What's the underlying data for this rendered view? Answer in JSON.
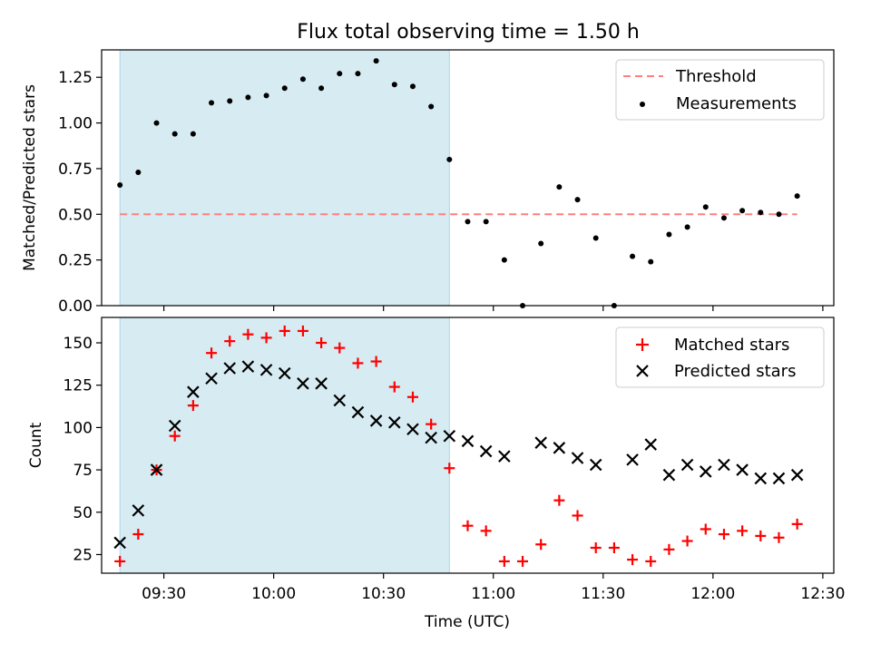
{
  "title": "Flux total observing time = 1.50 h",
  "colors": {
    "shade": "#add8e6",
    "threshold": "#ff7f7f",
    "measurement": "#000000",
    "matched": "#ff0000",
    "predicted": "#000000"
  },
  "chart_data": [
    {
      "type": "scatter",
      "ylabel": "Matched/Predicted stars",
      "ylim": [
        0,
        1.4
      ],
      "yticks": [
        0.0,
        0.25,
        0.5,
        0.75,
        1.0,
        1.25
      ],
      "ytick_labels": [
        "0.00",
        "0.25",
        "0.50",
        "0.75",
        "1.00",
        "1.25"
      ],
      "xlim": [
        "09:13",
        "12:33"
      ],
      "xticks": [
        "09:30",
        "10:00",
        "10:30",
        "11:00",
        "11:30",
        "12:00",
        "12:30"
      ],
      "shaded_span": [
        "09:18",
        "10:48"
      ],
      "grid": false,
      "legend_position": "top-right",
      "legend": [
        "Threshold",
        "Measurements"
      ],
      "threshold": {
        "name": "Threshold",
        "y": 0.5,
        "x_range": [
          "09:18",
          "12:23"
        ],
        "style": "dashed"
      },
      "series": [
        {
          "name": "Measurements",
          "marker": "dot",
          "x": [
            "09:18",
            "09:23",
            "09:28",
            "09:33",
            "09:38",
            "09:43",
            "09:48",
            "09:53",
            "09:58",
            "10:03",
            "10:08",
            "10:13",
            "10:18",
            "10:23",
            "10:28",
            "10:33",
            "10:38",
            "10:43",
            "10:48",
            "10:53",
            "10:58",
            "11:03",
            "11:08",
            "11:13",
            "11:18",
            "11:23",
            "11:28",
            "11:33",
            "11:38",
            "11:43",
            "11:48",
            "11:53",
            "11:58",
            "12:03",
            "12:08",
            "12:13",
            "12:18",
            "12:23"
          ],
          "y": [
            0.66,
            0.73,
            1.0,
            0.94,
            0.94,
            1.11,
            1.12,
            1.14,
            1.15,
            1.19,
            1.24,
            1.19,
            1.27,
            1.27,
            1.34,
            1.21,
            1.2,
            1.09,
            0.8,
            0.46,
            0.46,
            0.25,
            0.0,
            0.34,
            0.65,
            0.58,
            0.37,
            0.0,
            0.27,
            0.24,
            0.39,
            0.43,
            0.54,
            0.48,
            0.52,
            0.51,
            0.5,
            0.6
          ]
        }
      ]
    },
    {
      "type": "scatter",
      "xlabel": "Time (UTC)",
      "ylabel": "Count",
      "ylim": [
        14,
        165
      ],
      "yticks": [
        25,
        50,
        75,
        100,
        125,
        150
      ],
      "ytick_labels": [
        "25",
        "50",
        "75",
        "100",
        "125",
        "150"
      ],
      "xlim": [
        "09:13",
        "12:33"
      ],
      "xticks": [
        "09:30",
        "10:00",
        "10:30",
        "11:00",
        "11:30",
        "12:00",
        "12:30"
      ],
      "xtick_labels": [
        "09:30",
        "10:00",
        "10:30",
        "11:00",
        "11:30",
        "12:00",
        "12:30"
      ],
      "shaded_span": [
        "09:18",
        "10:48"
      ],
      "grid": false,
      "legend_position": "top-right",
      "legend": [
        "Matched stars",
        "Predicted stars"
      ],
      "series": [
        {
          "name": "Matched stars",
          "marker": "plus",
          "x": [
            "09:18",
            "09:23",
            "09:28",
            "09:33",
            "09:38",
            "09:43",
            "09:48",
            "09:53",
            "09:58",
            "10:03",
            "10:08",
            "10:13",
            "10:18",
            "10:23",
            "10:28",
            "10:33",
            "10:38",
            "10:43",
            "10:48",
            "10:53",
            "10:58",
            "11:03",
            "11:08",
            "11:13",
            "11:18",
            "11:23",
            "11:28",
            "11:33",
            "11:38",
            "11:43",
            "11:48",
            "11:53",
            "11:58",
            "12:03",
            "12:08",
            "12:13",
            "12:18",
            "12:23"
          ],
          "y": [
            21,
            37,
            75,
            95,
            113,
            144,
            151,
            155,
            153,
            157,
            157,
            150,
            147,
            138,
            139,
            124,
            118,
            102,
            76,
            42,
            39,
            21,
            21,
            31,
            57,
            48,
            29,
            29,
            22,
            21,
            28,
            33,
            40,
            37,
            39,
            36,
            35,
            43
          ]
        },
        {
          "name": "Predicted stars",
          "marker": "x",
          "x": [
            "09:18",
            "09:23",
            "09:28",
            "09:33",
            "09:38",
            "09:43",
            "09:48",
            "09:53",
            "09:58",
            "10:03",
            "10:08",
            "10:13",
            "10:18",
            "10:23",
            "10:28",
            "10:33",
            "10:38",
            "10:43",
            "10:48",
            "10:53",
            "10:58",
            "11:03",
            "11:13",
            "11:18",
            "11:23",
            "11:28",
            "11:38",
            "11:43",
            "11:48",
            "11:53",
            "11:58",
            "12:03",
            "12:08",
            "12:13",
            "12:18",
            "12:23"
          ],
          "y": [
            32,
            51,
            75,
            101,
            121,
            129,
            135,
            136,
            134,
            132,
            126,
            126,
            116,
            109,
            104,
            103,
            99,
            94,
            95,
            92,
            86,
            83,
            91,
            88,
            82,
            78,
            81,
            90,
            72,
            78,
            74,
            78,
            75,
            70,
            70,
            72
          ]
        }
      ]
    }
  ]
}
